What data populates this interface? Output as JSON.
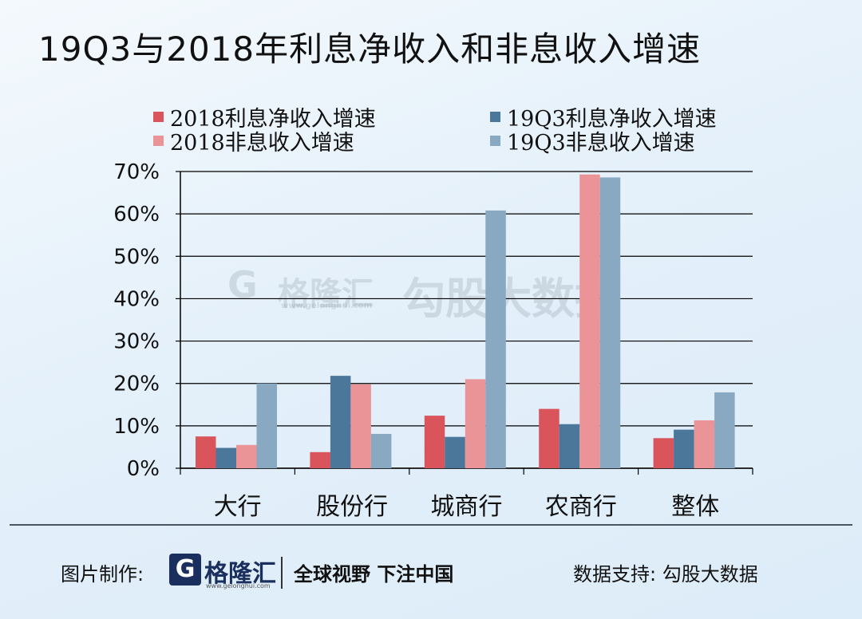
{
  "title": "19Q3与2018年利息净收入和非息收入增速",
  "chart_data": {
    "type": "bar",
    "categories": [
      "大行",
      "股份行",
      "城商行",
      "农商行",
      "整体"
    ],
    "series": [
      {
        "name": "2018利息净收入增速",
        "values": [
          7.5,
          3.8,
          12.4,
          14.0,
          7.1
        ],
        "color": "#d9545b"
      },
      {
        "name": "19Q3利息净收入增速",
        "values": [
          4.8,
          21.8,
          7.4,
          10.4,
          9.1
        ],
        "color": "#4b779a"
      },
      {
        "name": "2018非息收入增速",
        "values": [
          5.5,
          19.8,
          21.0,
          69.3,
          11.3
        ],
        "color": "#eb9497"
      },
      {
        "name": "19Q3非息收入增速",
        "values": [
          20.0,
          8.1,
          60.8,
          68.6,
          17.9
        ],
        "color": "#89a8c2"
      }
    ],
    "yticks": [
      "0%",
      "10%",
      "20%",
      "30%",
      "40%",
      "50%",
      "60%",
      "70%"
    ],
    "ylim": [
      0,
      70
    ],
    "grid": true,
    "legend_position": "top"
  },
  "footer": {
    "made_by_label": "图片制作:",
    "logo_mark": "G",
    "logo_name": "格隆汇",
    "logo_url": "www.gelonghui.com",
    "slogan": "全球视野 下注中国",
    "source": "数据支持: 勾股大数据"
  },
  "watermark": {
    "brand": "格隆汇",
    "url": "www.gelonghui.com",
    "partner": "勾股大数据"
  }
}
